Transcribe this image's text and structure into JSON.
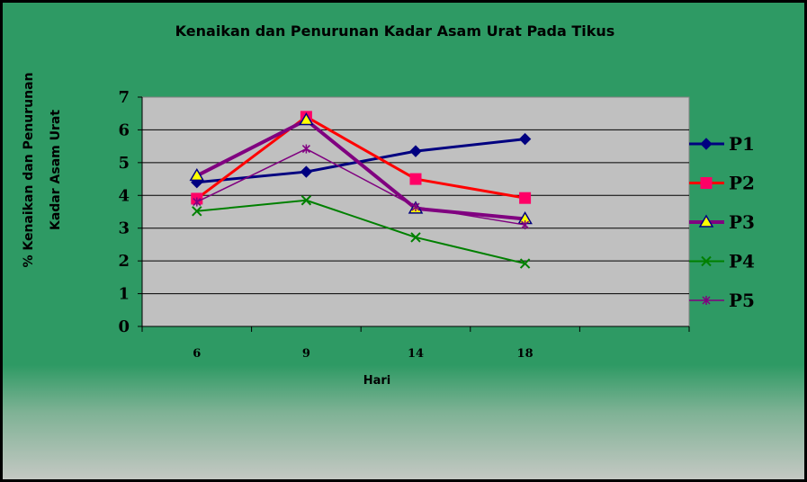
{
  "chart_data": {
    "type": "line",
    "title": "Kenaikan dan Penurunan Kadar Asam Urat Pada Tikus",
    "xlabel": "Hari",
    "ylabel_lines": [
      "% Kenaikan dan Penurunan",
      "Kadar Asam Urat"
    ],
    "categories": [
      "6",
      "9",
      "14",
      "18"
    ],
    "ylim": [
      0,
      7
    ],
    "yticks": [
      "0",
      "1",
      "2",
      "3",
      "4",
      "5",
      "6",
      "7"
    ],
    "grid": true,
    "legend_position": "right",
    "series": [
      {
        "name": "P1",
        "values": [
          4.4,
          4.72,
          5.35,
          5.72
        ],
        "color": "#000080",
        "marker": "diamond",
        "width": 3
      },
      {
        "name": "P2",
        "values": [
          3.9,
          6.4,
          4.5,
          3.92
        ],
        "color": "#ff0000",
        "marker": "square",
        "width": 3
      },
      {
        "name": "P3",
        "values": [
          4.6,
          6.3,
          3.6,
          3.28
        ],
        "color": "#800080",
        "marker": "triangle",
        "width": 4
      },
      {
        "name": "P4",
        "values": [
          3.52,
          3.85,
          2.72,
          1.92
        ],
        "color": "#008000",
        "marker": "x",
        "width": 2
      },
      {
        "name": "P5",
        "values": [
          3.8,
          5.42,
          3.65,
          3.1
        ],
        "color": "#800080",
        "marker": "star",
        "width": 1.5
      }
    ]
  }
}
